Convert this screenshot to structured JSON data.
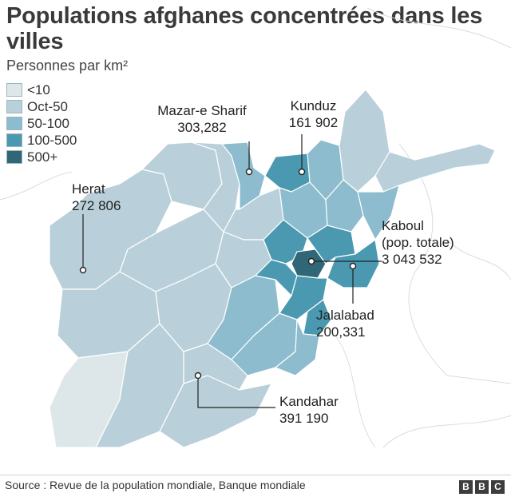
{
  "title": "Populations afghanes concentrées dans les villes",
  "subtitle": "Personnes par km²",
  "colors": {
    "class_lt10": "#dde7ea",
    "class_10_50": "#b9d0da",
    "class_50_100": "#8cbccd",
    "class_100_500": "#4a99b0",
    "class_500plus": "#2f6777",
    "background": "#ffffff",
    "neighbors": "#f3f3f3"
  },
  "legend": [
    {
      "label": "<10",
      "color": "#dde7ea"
    },
    {
      "label": "Oct-50",
      "color": "#b9d0da"
    },
    {
      "label": "50-100",
      "color": "#8cbccd"
    },
    {
      "label": "100-500",
      "color": "#4a99b0"
    },
    {
      "label": "500+",
      "color": "#2f6777"
    }
  ],
  "cities": [
    {
      "id": "mazar",
      "name": "Mazar-e Sharif",
      "population": "303,282"
    },
    {
      "id": "kunduz",
      "name": "Kunduz",
      "population": "161 902"
    },
    {
      "id": "herat",
      "name": "Herat",
      "population": "272 806"
    },
    {
      "id": "kaboul",
      "name": "Kaboul",
      "note": "(pop. totale)",
      "population": "3 043 532"
    },
    {
      "id": "jalalabad",
      "name": "Jalalabad",
      "population": "200,331"
    },
    {
      "id": "kandahar",
      "name": "Kandahar",
      "population": "391 190"
    }
  ],
  "source": "Source : Revue de la population mondiale, Banque mondiale",
  "logo_letters": [
    "B",
    "B",
    "C"
  ]
}
